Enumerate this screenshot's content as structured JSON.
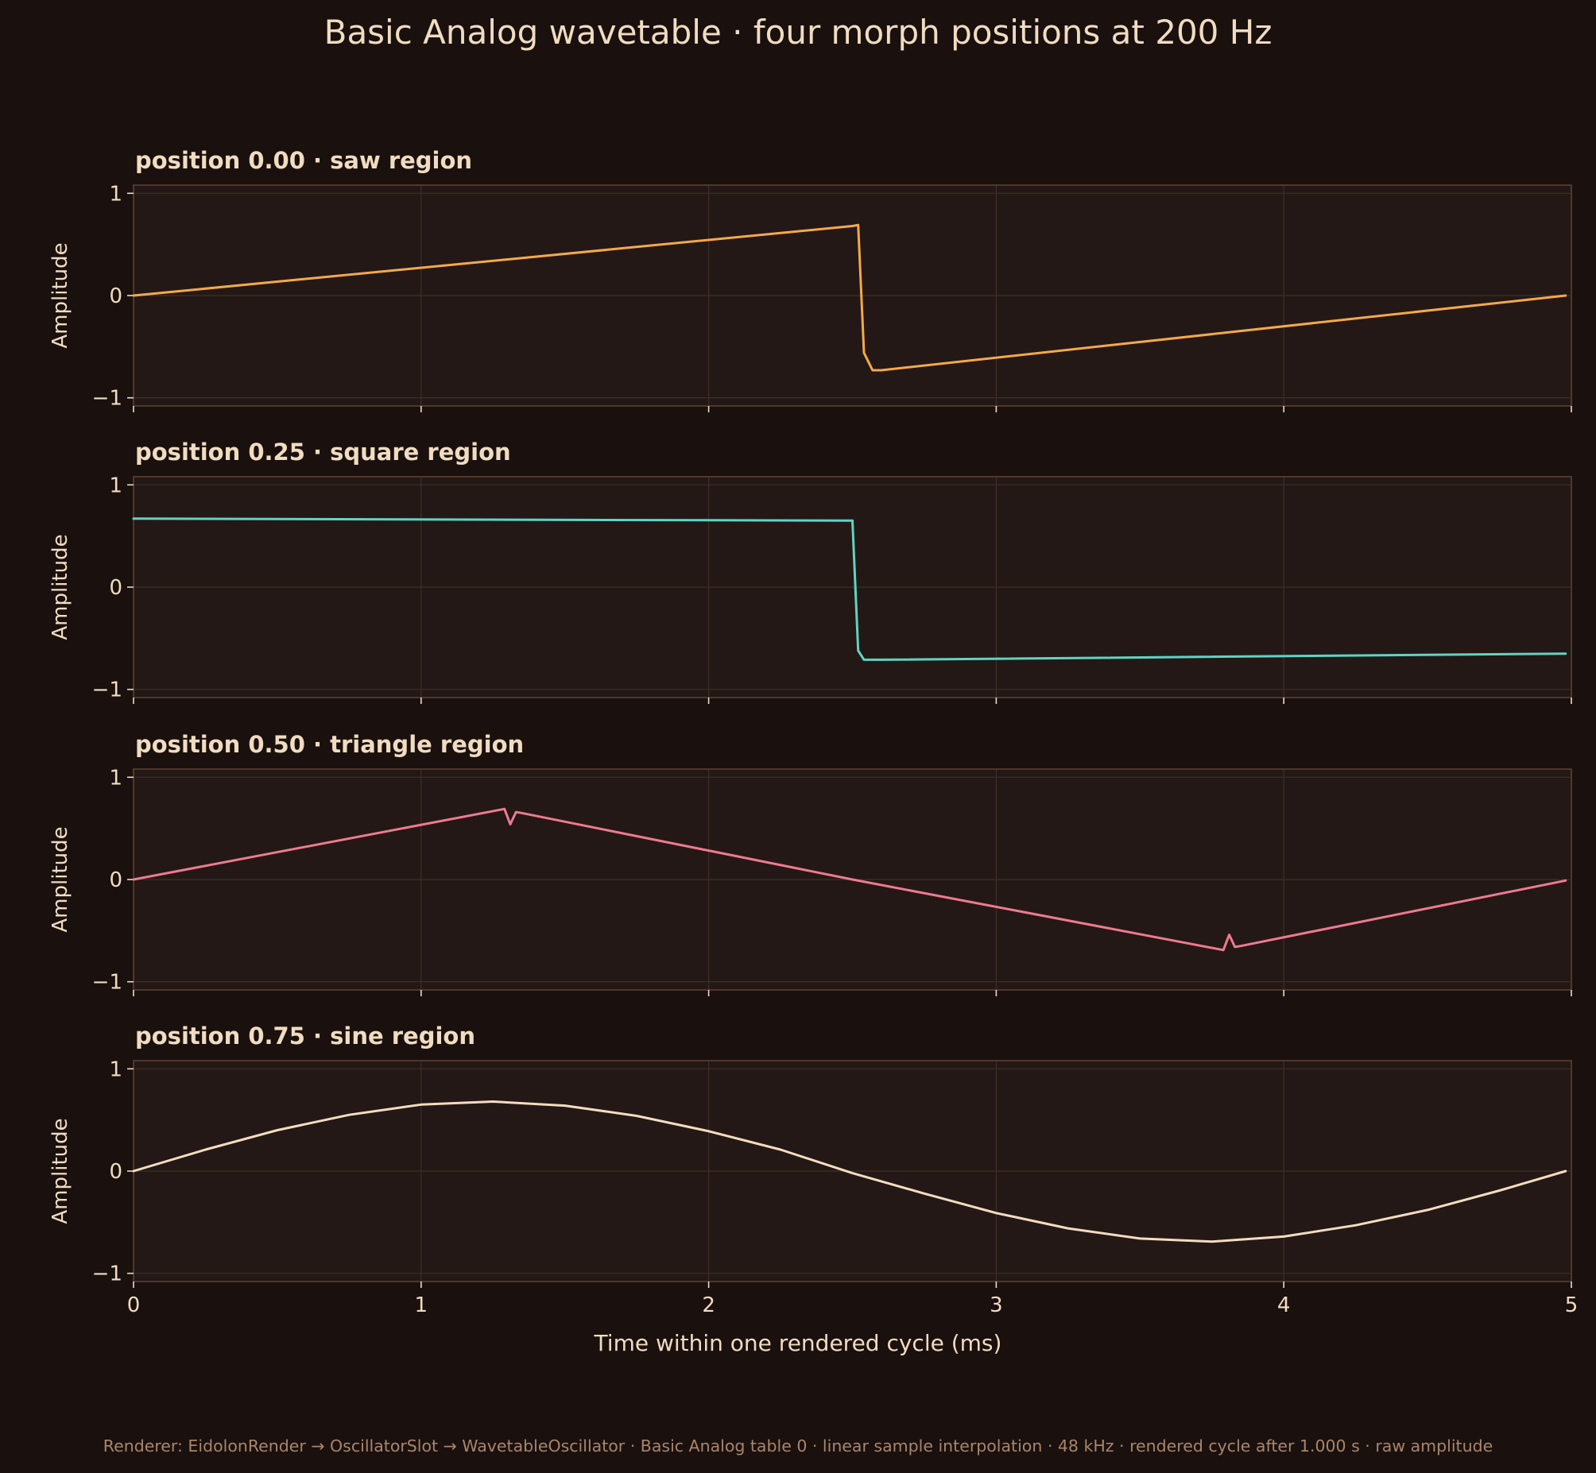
{
  "figure": {
    "title": "Basic Analog wavetable · four morph positions at 200 Hz",
    "xlabel": "Time within one rendered cycle (ms)",
    "footer": "Renderer: EidolonRender → OscillatorSlot → WavetableOscillator · Basic Analog table 0 · linear sample interpolation · 48 kHz · rendered cycle after 1.000 s · raw amplitude"
  },
  "colors": {
    "background": "#1a100e",
    "panel": "#231815",
    "grid": "#3f2f27",
    "spine": "#5a4030",
    "text": "#f0dcc0",
    "footer": "#a8866a",
    "saw": "#f5a94a",
    "square": "#5fd4c4",
    "triangle": "#ee7a90",
    "sine": "#f5dcc0"
  },
  "chart_data": [
    {
      "type": "line",
      "title": "position 0.00 · saw region",
      "xlabel": "",
      "ylabel": "Amplitude",
      "xlim": [
        0,
        5
      ],
      "ylim": [
        -1.08,
        1.08
      ],
      "xticks": [
        0,
        1,
        2,
        3,
        4,
        5
      ],
      "yticks": [
        -1,
        0,
        1
      ],
      "ytick_labels": [
        "−1",
        "0",
        "1"
      ],
      "grid": true,
      "color": "#f5a94a",
      "x": [
        0,
        2.5,
        2.52,
        2.54,
        2.57,
        2.6,
        4.98
      ],
      "y": [
        0,
        0.68,
        0.69,
        -0.56,
        -0.73,
        -0.73,
        0.0
      ]
    },
    {
      "type": "line",
      "title": "position 0.25 · square region",
      "xlabel": "",
      "ylabel": "Amplitude",
      "xlim": [
        0,
        5
      ],
      "ylim": [
        -1.08,
        1.08
      ],
      "xticks": [
        0,
        1,
        2,
        3,
        4,
        5
      ],
      "yticks": [
        -1,
        0,
        1
      ],
      "ytick_labels": [
        "−1",
        "0",
        "1"
      ],
      "grid": true,
      "color": "#5fd4c4",
      "x": [
        0,
        2.48,
        2.5,
        2.52,
        2.54,
        2.6,
        4.98
      ],
      "y": [
        0.67,
        0.65,
        0.65,
        -0.62,
        -0.71,
        -0.71,
        -0.65
      ]
    },
    {
      "type": "line",
      "title": "position 0.50 · triangle region",
      "xlabel": "",
      "ylabel": "Amplitude",
      "xlim": [
        0,
        5
      ],
      "ylim": [
        -1.08,
        1.08
      ],
      "xticks": [
        0,
        1,
        2,
        3,
        4,
        5
      ],
      "yticks": [
        -1,
        0,
        1
      ],
      "ytick_labels": [
        "−1",
        "0",
        "1"
      ],
      "grid": true,
      "color": "#ee7a90",
      "x": [
        0,
        1.29,
        1.31,
        1.33,
        1.35,
        2.5,
        3.79,
        3.81,
        3.83,
        3.85,
        4.98
      ],
      "y": [
        0,
        0.69,
        0.54,
        0.66,
        0.65,
        0.0,
        -0.69,
        -0.54,
        -0.66,
        -0.65,
        -0.01
      ]
    },
    {
      "type": "line",
      "title": "position 0.75 · sine region",
      "xlabel": "Time within one rendered cycle (ms)",
      "ylabel": "Amplitude",
      "xlim": [
        0,
        5
      ],
      "ylim": [
        -1.08,
        1.08
      ],
      "xticks": [
        0,
        1,
        2,
        3,
        4,
        5
      ],
      "yticks": [
        -1,
        0,
        1
      ],
      "ytick_labels": [
        "−1",
        "0",
        "1"
      ],
      "grid": true,
      "color": "#f5dcc0",
      "x": [
        0,
        0.25,
        0.5,
        0.75,
        1.0,
        1.25,
        1.5,
        1.75,
        2.0,
        2.25,
        2.5,
        2.75,
        3.0,
        3.25,
        3.5,
        3.75,
        4.0,
        4.25,
        4.5,
        4.75,
        4.98
      ],
      "y": [
        0,
        0.21,
        0.4,
        0.55,
        0.65,
        0.68,
        0.64,
        0.54,
        0.39,
        0.21,
        -0.02,
        -0.22,
        -0.41,
        -0.56,
        -0.66,
        -0.69,
        -0.64,
        -0.53,
        -0.38,
        -0.19,
        0.0
      ]
    }
  ]
}
